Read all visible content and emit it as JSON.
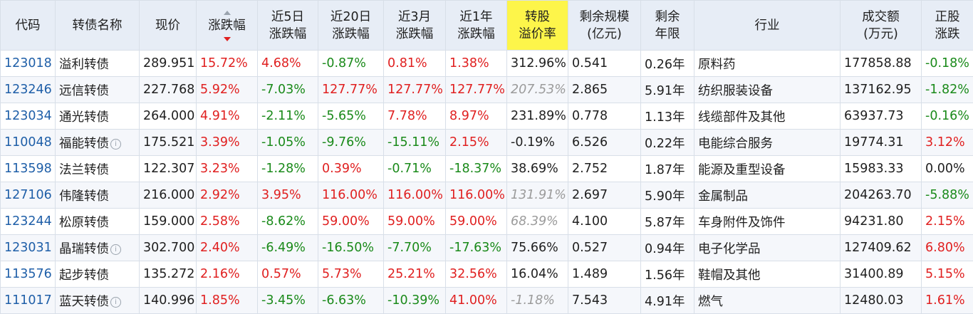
{
  "headers": [
    {
      "key": "code",
      "line1": "代码",
      "line2": ""
    },
    {
      "key": "name",
      "line1": "转债名称",
      "line2": ""
    },
    {
      "key": "price",
      "line1": "现价",
      "line2": ""
    },
    {
      "key": "chg",
      "line1": "涨跌幅",
      "line2": ""
    },
    {
      "key": "chg5d",
      "line1": "近5日",
      "line2": "涨跌幅"
    },
    {
      "key": "chg20d",
      "line1": "近20日",
      "line2": "涨跌幅"
    },
    {
      "key": "chg3m",
      "line1": "近3月",
      "line2": "涨跌幅"
    },
    {
      "key": "chg1y",
      "line1": "近1年",
      "line2": "涨跌幅"
    },
    {
      "key": "premium",
      "line1": "转股",
      "line2": "溢价率"
    },
    {
      "key": "size",
      "line1": "剩余规模",
      "line2": "(亿元)"
    },
    {
      "key": "years",
      "line1": "剩余",
      "line2": "年限"
    },
    {
      "key": "industry",
      "line1": "行业",
      "line2": ""
    },
    {
      "key": "volume",
      "line1": "成交额",
      "line2": "(万元)"
    },
    {
      "key": "stock_chg",
      "line1": "正股",
      "line2": "涨跌"
    }
  ],
  "rows": [
    {
      "code": "123018",
      "name": "溢利转债",
      "info": false,
      "price": "289.951",
      "chg": "15.72%",
      "chg5d": "4.68%",
      "chg20d": "-0.87%",
      "chg3m": "0.81%",
      "chg1y": "1.38%",
      "premium": "312.96%",
      "premium_muted": false,
      "size": "0.541",
      "years": "0.26年",
      "industry": "原料药",
      "volume": "177858.88",
      "stock_chg": "-0.18%"
    },
    {
      "code": "123246",
      "name": "远信转债",
      "info": false,
      "price": "227.768",
      "chg": "5.92%",
      "chg5d": "-7.03%",
      "chg20d": "127.77%",
      "chg3m": "127.77%",
      "chg1y": "127.77%",
      "premium": "207.53%",
      "premium_muted": true,
      "size": "2.865",
      "years": "5.91年",
      "industry": "纺织服装设备",
      "volume": "137162.95",
      "stock_chg": "-1.82%"
    },
    {
      "code": "123034",
      "name": "通光转债",
      "info": false,
      "price": "264.000",
      "chg": "4.91%",
      "chg5d": "-2.11%",
      "chg20d": "-5.65%",
      "chg3m": "7.78%",
      "chg1y": "8.97%",
      "premium": "231.89%",
      "premium_muted": false,
      "size": "0.778",
      "years": "1.13年",
      "industry": "线缆部件及其他",
      "volume": "63937.73",
      "stock_chg": "-0.16%"
    },
    {
      "code": "110048",
      "name": "福能转债",
      "info": true,
      "price": "175.521",
      "chg": "3.39%",
      "chg5d": "-1.05%",
      "chg20d": "-9.76%",
      "chg3m": "-15.11%",
      "chg1y": "2.15%",
      "premium": "-0.19%",
      "premium_muted": false,
      "size": "6.526",
      "years": "0.22年",
      "industry": "电能综合服务",
      "volume": "19774.31",
      "stock_chg": "3.12%"
    },
    {
      "code": "113598",
      "name": "法兰转债",
      "info": false,
      "price": "122.307",
      "chg": "3.23%",
      "chg5d": "-1.28%",
      "chg20d": "0.39%",
      "chg3m": "-0.71%",
      "chg1y": "-18.37%",
      "premium": "38.69%",
      "premium_muted": false,
      "size": "2.752",
      "years": "1.87年",
      "industry": "能源及重型设备",
      "volume": "15983.33",
      "stock_chg": "0.00%"
    },
    {
      "code": "127106",
      "name": "伟隆转债",
      "info": false,
      "price": "216.000",
      "chg": "2.92%",
      "chg5d": "3.95%",
      "chg20d": "116.00%",
      "chg3m": "116.00%",
      "chg1y": "116.00%",
      "premium": "131.91%",
      "premium_muted": true,
      "size": "2.697",
      "years": "5.90年",
      "industry": "金属制品",
      "volume": "204263.70",
      "stock_chg": "-5.88%"
    },
    {
      "code": "123244",
      "name": "松原转债",
      "info": false,
      "price": "159.000",
      "chg": "2.58%",
      "chg5d": "-8.62%",
      "chg20d": "59.00%",
      "chg3m": "59.00%",
      "chg1y": "59.00%",
      "premium": "68.39%",
      "premium_muted": true,
      "size": "4.100",
      "years": "5.87年",
      "industry": "车身附件及饰件",
      "volume": "94231.80",
      "stock_chg": "2.15%"
    },
    {
      "code": "123031",
      "name": "晶瑞转债",
      "info": true,
      "price": "302.700",
      "chg": "2.40%",
      "chg5d": "-6.49%",
      "chg20d": "-16.50%",
      "chg3m": "-7.70%",
      "chg1y": "-17.63%",
      "premium": "75.66%",
      "premium_muted": false,
      "size": "0.527",
      "years": "0.94年",
      "industry": "电子化学品",
      "volume": "127409.62",
      "stock_chg": "6.80%"
    },
    {
      "code": "113576",
      "name": "起步转债",
      "info": false,
      "price": "135.272",
      "chg": "2.16%",
      "chg5d": "0.57%",
      "chg20d": "5.73%",
      "chg3m": "25.21%",
      "chg1y": "32.56%",
      "premium": "16.04%",
      "premium_muted": false,
      "size": "1.489",
      "years": "1.56年",
      "industry": "鞋帽及其他",
      "volume": "31400.89",
      "stock_chg": "5.15%"
    },
    {
      "code": "111017",
      "name": "蓝天转债",
      "info": true,
      "price": "140.996",
      "chg": "1.85%",
      "chg5d": "-3.45%",
      "chg20d": "-6.63%",
      "chg3m": "-10.39%",
      "chg1y": "41.00%",
      "premium": "-1.18%",
      "premium_muted": true,
      "size": "7.543",
      "years": "4.91年",
      "industry": "燃气",
      "volume": "12480.03",
      "stock_chg": "1.61%"
    }
  ],
  "info_icon": "info-circle-icon",
  "colors": {
    "up": "#e02020",
    "down": "#1a8a1a",
    "code": "#1f5fa8",
    "header_bg": "#e7edf6",
    "highlight": "#fdf54a"
  }
}
